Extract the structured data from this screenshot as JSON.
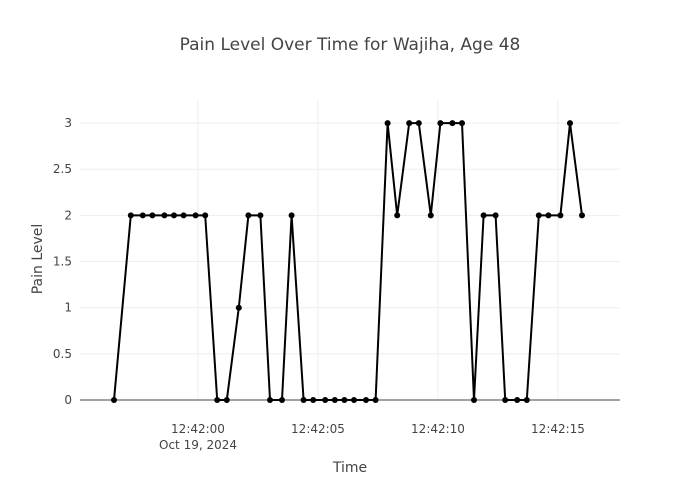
{
  "chart_data": {
    "type": "line",
    "title": "Pain Level Over Time for Wajiha, Age 48",
    "xlabel": "Time",
    "ylabel": "Pain Level",
    "x_tick_labels": [
      "12:42:00",
      "12:42:05",
      "12:42:10",
      "12:42:15"
    ],
    "x_date_label": "Oct 19, 2024",
    "x": [
      "12:41:56.5",
      "12:41:57.2",
      "12:41:57.7",
      "12:41:58.1",
      "12:41:58.6",
      "12:41:59.0",
      "12:41:59.4",
      "12:41:59.9",
      "12:42:00.3",
      "12:42:00.8",
      "12:42:01.2",
      "12:42:01.7",
      "12:42:02.1",
      "12:42:02.6",
      "12:42:03.0",
      "12:42:03.5",
      "12:42:03.9",
      "12:42:04.4",
      "12:42:04.8",
      "12:42:05.3",
      "12:42:05.7",
      "12:42:06.1",
      "12:42:06.5",
      "12:42:07.0",
      "12:42:07.4",
      "12:42:07.9",
      "12:42:08.3",
      "12:42:08.8",
      "12:42:09.2",
      "12:42:09.7",
      "12:42:10.1",
      "12:42:10.6",
      "12:42:11.0",
      "12:42:11.5",
      "12:42:11.9",
      "12:42:12.4",
      "12:42:12.8",
      "12:42:13.3",
      "12:42:13.7",
      "12:42:14.2",
      "12:42:14.6",
      "12:42:15.1",
      "12:42:15.5",
      "12:42:16.0"
    ],
    "y": [
      0,
      2,
      2,
      2,
      2,
      2,
      2,
      2,
      2,
      0,
      0,
      1,
      2,
      2,
      0,
      0,
      2,
      0,
      0,
      0,
      0,
      0,
      0,
      0,
      0,
      3,
      2,
      3,
      3,
      2,
      3,
      3,
      3,
      0,
      2,
      2,
      0,
      0,
      0,
      2,
      2,
      2,
      3,
      2
    ],
    "ylim": [
      0,
      3.25
    ],
    "y_ticks": [
      "0",
      "0.5",
      "1",
      "1.5",
      "2",
      "2.5",
      "3"
    ],
    "grid": true,
    "colors": {
      "line": "#000000",
      "grid": "#eeeeee",
      "zero_line": "#444444"
    }
  }
}
